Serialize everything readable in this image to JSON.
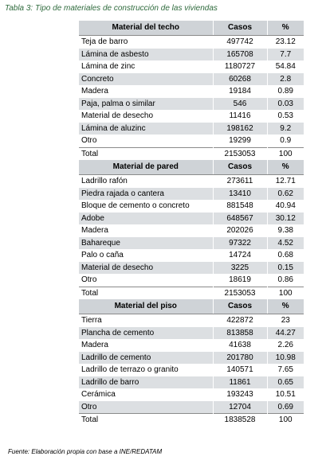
{
  "caption": "Tabla 3: Tipo de materiales de construcción de las viviendas",
  "source": "Fuente: Elaboración propia con base a INE/REDATAM",
  "sections": [
    {
      "header": [
        "Material del techo",
        "Casos",
        "%"
      ],
      "rows": [
        [
          "Teja de barro",
          "497742",
          "23.12"
        ],
        [
          "Lámina de asbesto",
          "165708",
          "7.7"
        ],
        [
          "Lámina de zinc",
          "1180727",
          "54.84"
        ],
        [
          "Concreto",
          "60268",
          "2.8"
        ],
        [
          "Madera",
          "19184",
          "0.89"
        ],
        [
          "Paja, palma o similar",
          "546",
          "0.03"
        ],
        [
          "Material de desecho",
          "11416",
          "0.53"
        ],
        [
          "Lámina de aluzinc",
          "198162",
          "9.2"
        ],
        [
          "Otro",
          "19299",
          "0.9"
        ],
        [
          "Total",
          "2153053",
          "100"
        ]
      ]
    },
    {
      "header": [
        "Material de pared",
        "Casos",
        "%"
      ],
      "rows": [
        [
          "Ladrillo rafón",
          "273611",
          "12.71"
        ],
        [
          "Piedra rajada o cantera",
          "13410",
          "0.62"
        ],
        [
          "Bloque de cemento o concreto",
          "881548",
          "40.94"
        ],
        [
          "Adobe",
          "648567",
          "30.12"
        ],
        [
          "Madera",
          "202026",
          "9.38"
        ],
        [
          "Bahareque",
          "97322",
          "4.52"
        ],
        [
          "Palo o caña",
          "14724",
          "0.68"
        ],
        [
          "Material de desecho",
          "3225",
          "0.15"
        ],
        [
          "Otro",
          "18619",
          "0.86"
        ],
        [
          "Total",
          "2153053",
          "100"
        ]
      ]
    },
    {
      "header": [
        "Material del piso",
        "Casos",
        "%"
      ],
      "rows": [
        [
          "Tierra",
          "422872",
          "23"
        ],
        [
          "Plancha de cemento",
          "813858",
          "44.27"
        ],
        [
          "Madera",
          "41638",
          "2.26"
        ],
        [
          "Ladrillo de cemento",
          "201780",
          "10.98"
        ],
        [
          "Ladrillo de terrazo o granito",
          "140571",
          "7.65"
        ],
        [
          "Ladrillo de barro",
          "11861",
          "0.65"
        ],
        [
          "Cerámica",
          "193243",
          "10.51"
        ],
        [
          "Otro",
          "12704",
          "0.69"
        ],
        [
          "Total",
          "1838528",
          "100"
        ]
      ]
    }
  ]
}
